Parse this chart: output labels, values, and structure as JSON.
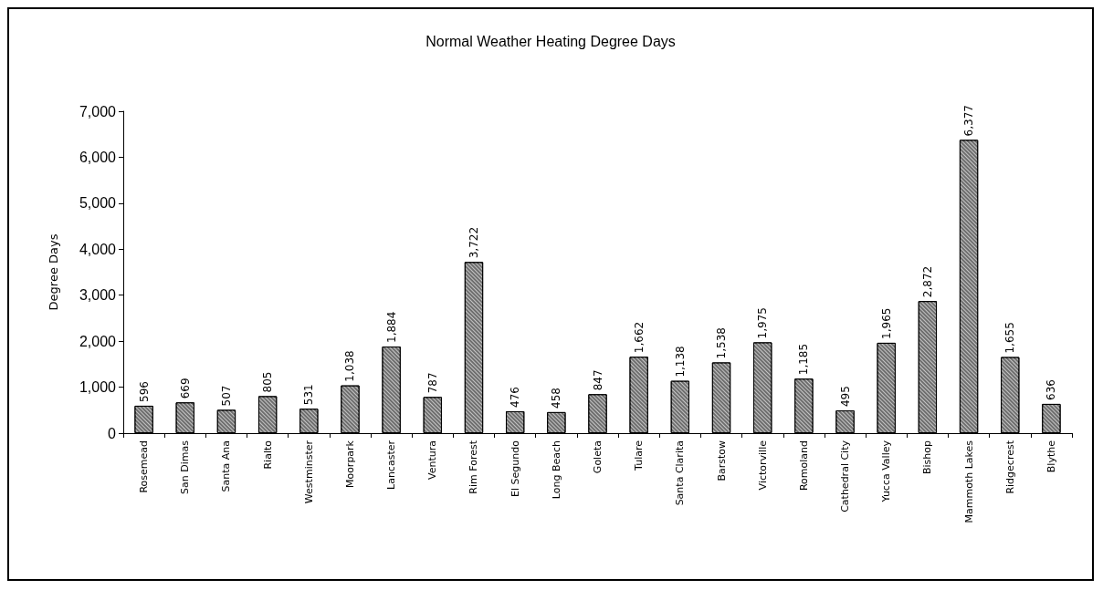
{
  "chart_data": {
    "type": "bar",
    "title": "Normal Weather Heating Degree Days",
    "ylabel": "Degree Days",
    "categories": [
      "Rosemead",
      "San Dimas",
      "Santa Ana",
      "Rialto",
      "Westminster",
      "Moorpark",
      "Lancaster",
      "Ventura",
      "Rim Forest",
      "El Segundo",
      "Long Beach",
      "Goleta",
      "Tulare",
      "Santa Clarita",
      "Barstow",
      "Victorville",
      "Romoland",
      "Cathedral City",
      "Yucca Valley",
      "Bishop",
      "Mammoth Lakes",
      "Ridgecrest",
      "Blythe"
    ],
    "values": [
      596,
      669,
      507,
      805,
      531,
      1038,
      1884,
      787,
      3722,
      476,
      458,
      847,
      1662,
      1138,
      1538,
      1975,
      1185,
      495,
      1965,
      2872,
      6377,
      1655,
      636
    ],
    "value_labels": [
      "596",
      "669",
      "507",
      "805",
      "531",
      "1,038",
      "1,884",
      "787",
      "3,722",
      "476",
      "458",
      "847",
      "1,662",
      "1,138",
      "1,538",
      "1,975",
      "1,185",
      "495",
      "1,965",
      "2,872",
      "6,377",
      "1,655",
      "636"
    ],
    "color": "#6e6e6e",
    "ylim": [
      0,
      7000
    ],
    "yticks": [
      0,
      {
        "value": 1000,
        "label": "1,000"
      },
      {
        "value": 2000,
        "label": "2,000"
      },
      {
        "value": 3000,
        "label": "3,000"
      },
      {
        "value": 4000,
        "label": "4,000"
      },
      {
        "value": 5000,
        "label": "5,000"
      },
      {
        "value": 6000,
        "label": "6,000"
      },
      {
        "value": 7000,
        "label": "7,000"
      }
    ],
    "grid": false
  }
}
